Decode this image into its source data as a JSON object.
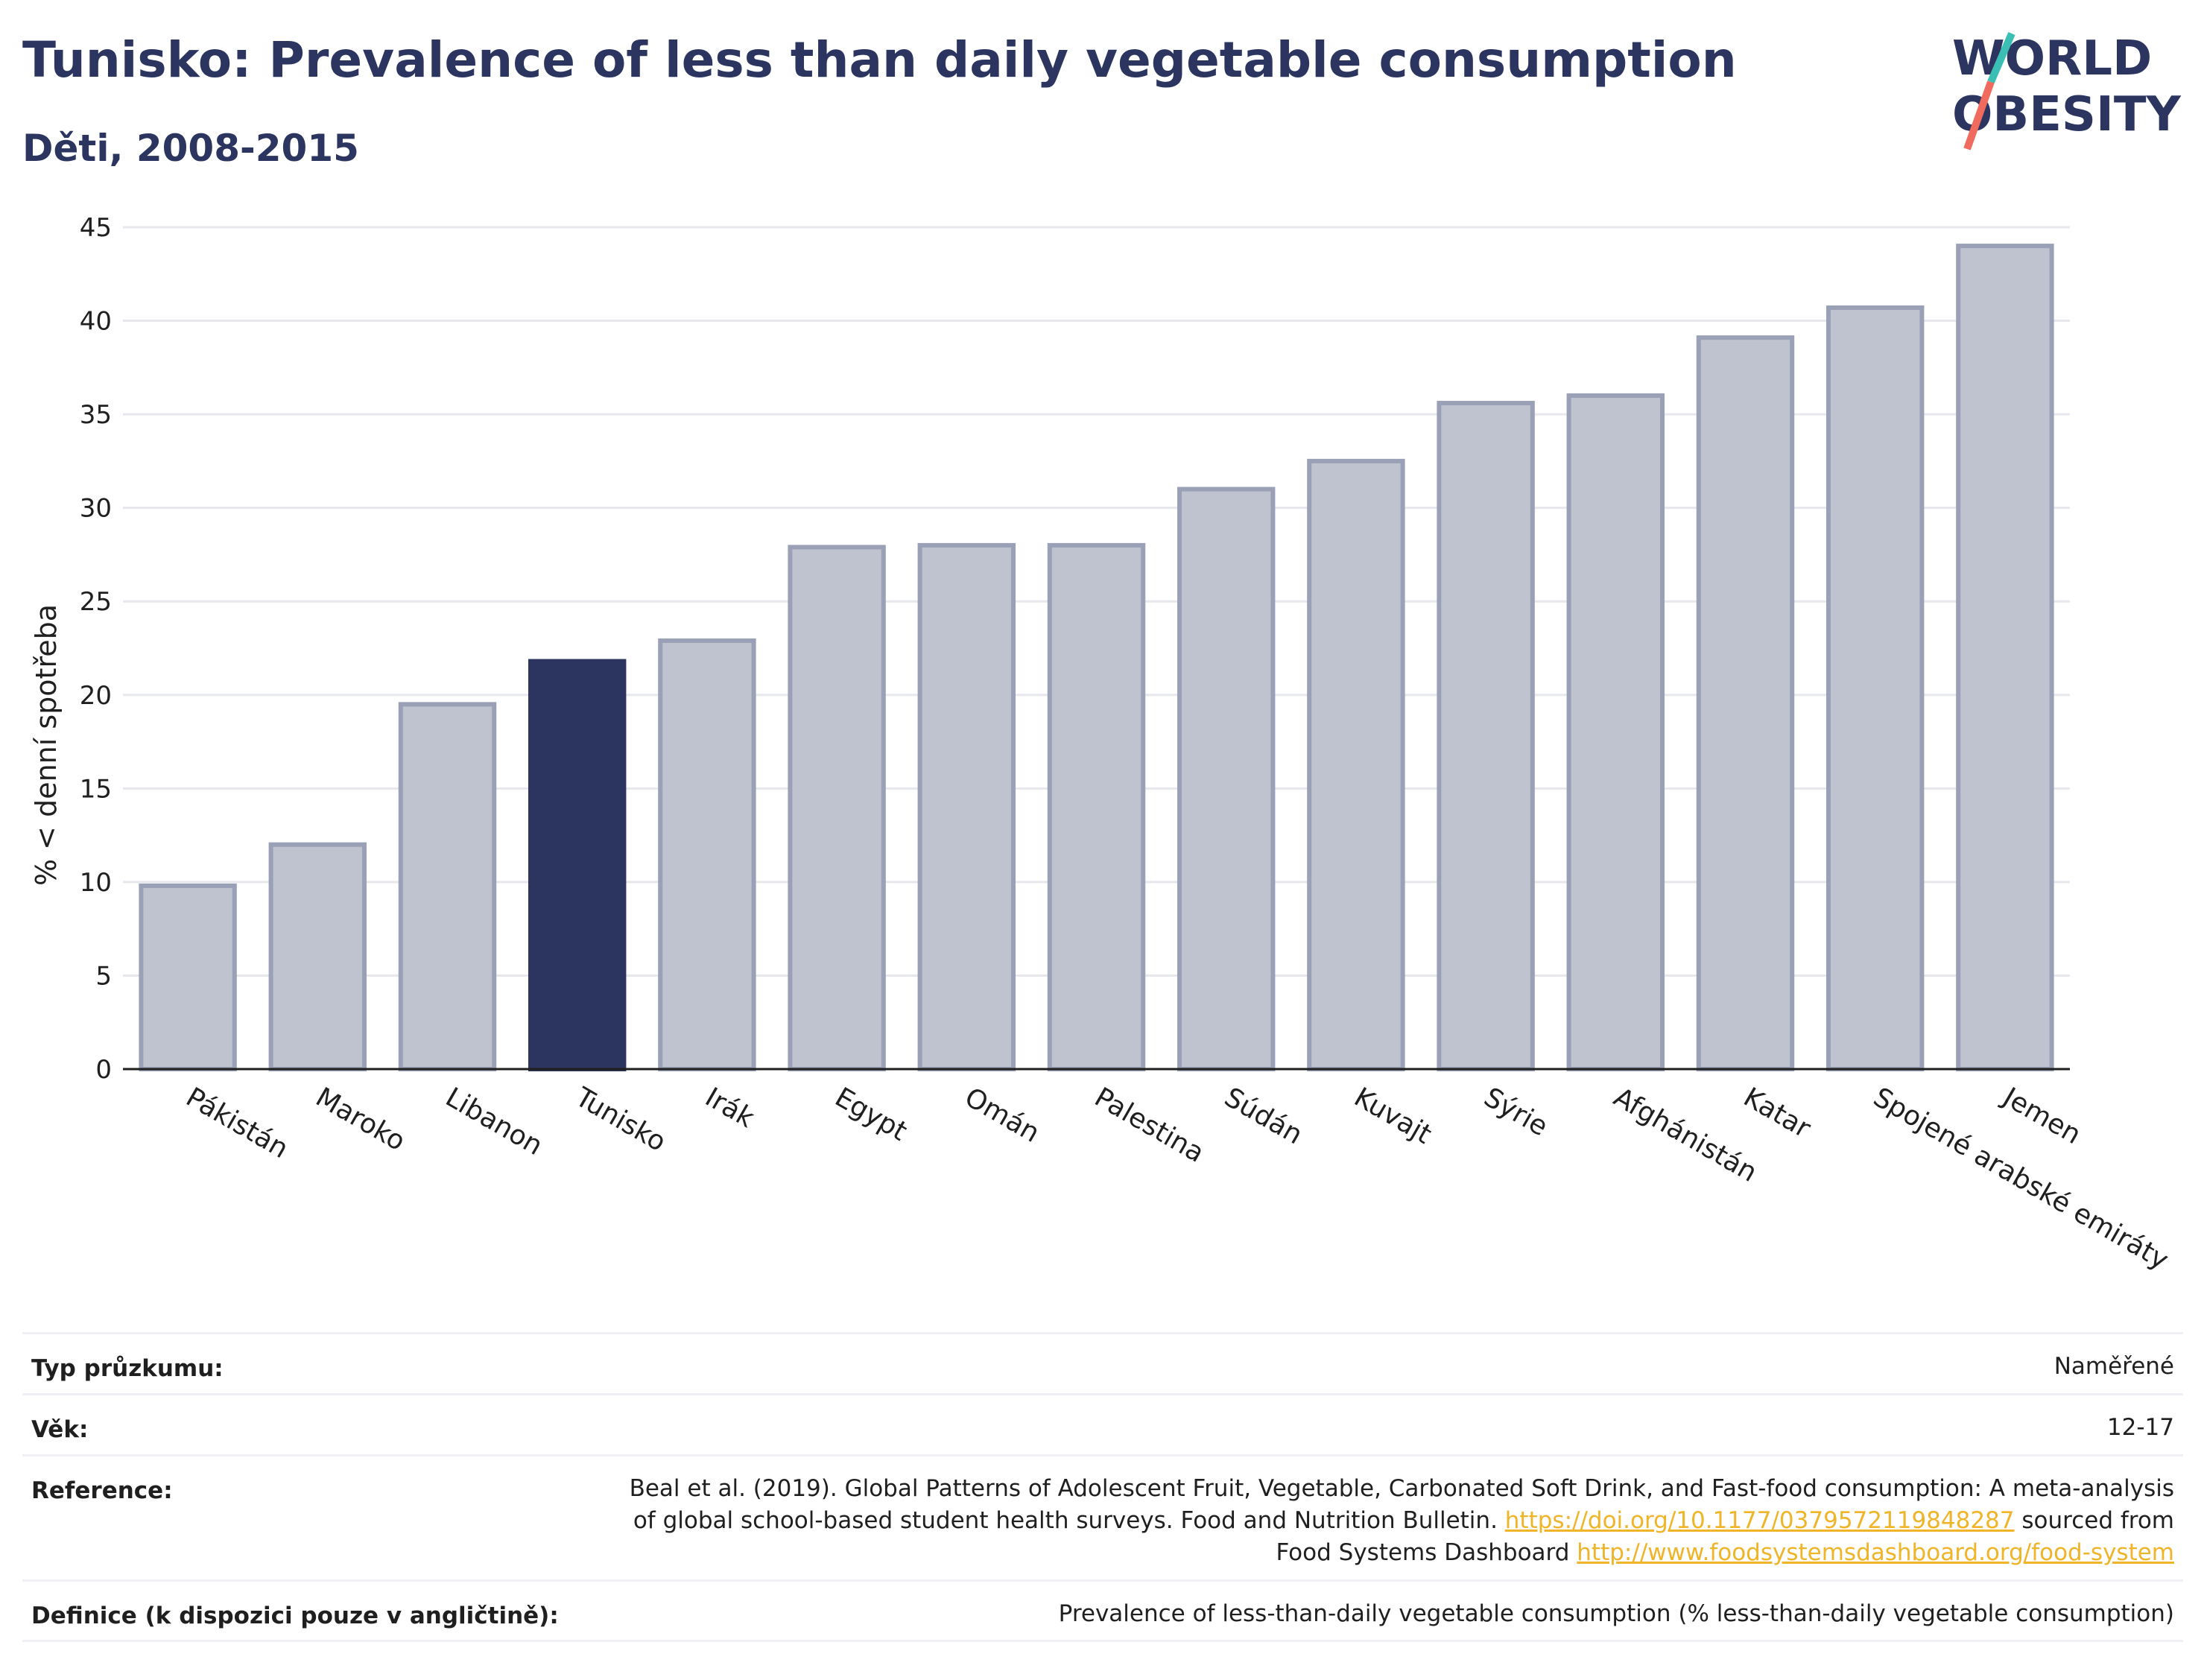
{
  "header": {
    "title": "Tunisko: Prevalence of less than daily vegetable consumption",
    "subtitle": "Děti, 2008-2015"
  },
  "logo": {
    "line1": "WORLD",
    "line2": "OBESITY"
  },
  "colors": {
    "highlight": "#2b3560",
    "bar": "#bfc3cf",
    "bar_edge": "#9aa0b6",
    "title": "#2b3560",
    "accent_teal": "#3bbfb5",
    "accent_coral": "#f06b5e"
  },
  "chart_data": {
    "type": "bar",
    "categories": [
      "Pákistán",
      "Maroko",
      "Libanon",
      "Tunisko",
      "Irák",
      "Egypt",
      "Omán",
      "Palestina",
      "Súdán",
      "Kuvajt",
      "Sýrie",
      "Afghánistán",
      "Katar",
      "Spojené arabské emiráty",
      "Jemen"
    ],
    "values": [
      9.8,
      12.0,
      19.5,
      21.8,
      22.9,
      27.9,
      28.0,
      28.0,
      31.0,
      32.5,
      35.6,
      36.0,
      39.1,
      40.7,
      44.0
    ],
    "highlight": "Tunisko",
    "ylabel": "% < denní spotřeba",
    "xlabel": "",
    "ylim": [
      0,
      45
    ],
    "yticks": [
      0,
      5,
      10,
      15,
      20,
      25,
      30,
      35,
      40,
      45
    ],
    "grid": true
  },
  "info": [
    {
      "key": "Typ průzkumu:",
      "value": "Naměřené"
    },
    {
      "key": "Věk:",
      "value": "12-17"
    },
    {
      "key": "Reference:",
      "value_lines": [
        "Beal et al. (2019). Global Patterns of Adolescent Fruit, Vegetable, Carbonated Soft Drink, and Fast-food consumption: A meta-analysis",
        "of global school-based student health surveys. Food and Nutrition Bulletin."
      ],
      "link1": "https://doi.org/10.1177/0379572119848287",
      "mid_text": " sourced from",
      "line3_prefix": "Food Systems Dashboard ",
      "link2": "http://www.foodsystemsdashboard.org/food-system"
    },
    {
      "key": "Definice (k dispozici pouze v angličtině):",
      "value": "Prevalence of less-than-daily vegetable consumption (% less-than-daily vegetable consumption)"
    }
  ]
}
